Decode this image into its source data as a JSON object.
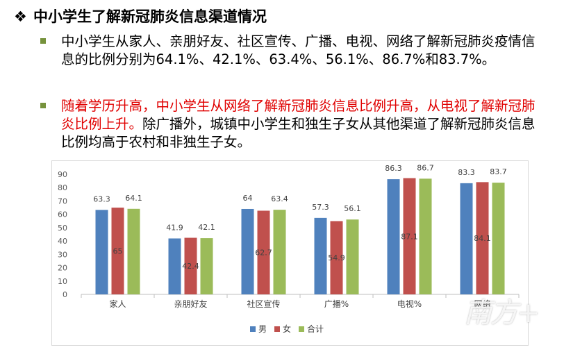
{
  "slide": {
    "heading_marker": "❖",
    "heading": "中小学生了解新冠肺炎信息渠道情况",
    "bullet1": "中小学生从家人、亲朋好友、社区宣传、广播、电视、网络了解新冠肺炎疫情信息的比例分别为64.1%、42.1%、63.4%、56.1%、86.7%和83.7%。",
    "bullet2_red": "随着学历升高，中小学生从网络了解新冠肺炎信息比例升高，从电视了解新冠肺炎比例上升。",
    "bullet2_rest": "除广播外，城镇中小学生和独生子女从其他渠道了解新冠肺炎信息比例均高于农村和非独生子女。",
    "watermark": "南方+"
  },
  "colors": {
    "male": "#4f81bd",
    "female": "#c0504d",
    "total": "#9bbb59",
    "bullet_square": "#76923c",
    "highlight_text": "#e00000"
  },
  "chart_data": {
    "type": "bar",
    "categories": [
      "家人",
      "亲朋好友",
      "社区宣传",
      "广播%",
      "电视%",
      "网络"
    ],
    "series": [
      {
        "name": "男",
        "values": [
          63.3,
          41.9,
          64,
          57.3,
          86.3,
          83.3
        ]
      },
      {
        "name": "女",
        "values": [
          65,
          42.4,
          62.7,
          54.9,
          87.1,
          84.1
        ]
      },
      {
        "name": "合计",
        "values": [
          64.1,
          42.1,
          63.4,
          56.1,
          86.7,
          83.7
        ]
      }
    ],
    "ylim": [
      0,
      90
    ],
    "yticks": [
      0,
      10,
      20,
      30,
      40,
      50,
      60,
      70,
      80,
      90
    ],
    "grid": false,
    "legend": "bottom",
    "data_labels": {
      "男": "above",
      "女": "inside",
      "合计": "above"
    }
  }
}
